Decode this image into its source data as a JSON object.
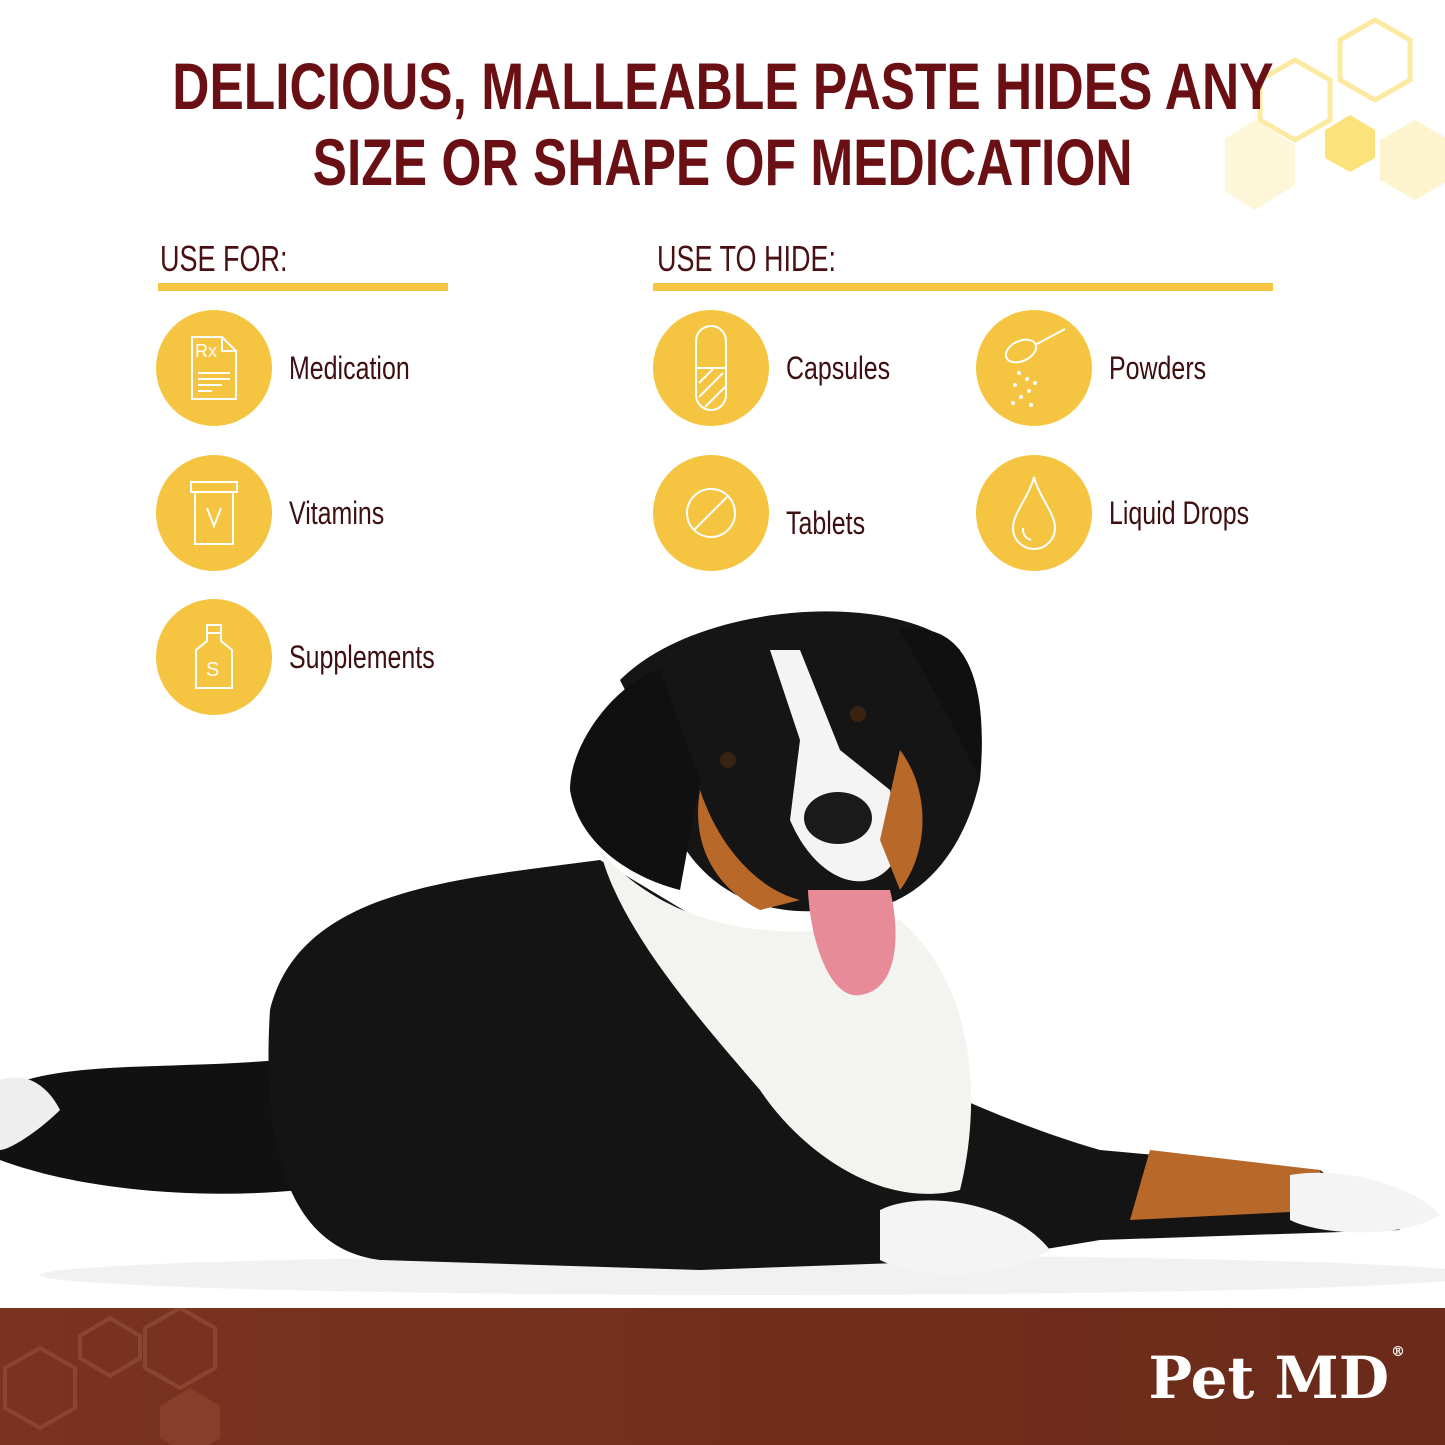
{
  "headline": {
    "line1": "DELICIOUS, MALLEABLE PASTE HIDES ANY",
    "line2": "SIZE OR SHAPE OF MEDICATION"
  },
  "use_for": {
    "heading": "USE FOR:",
    "items": [
      {
        "label": "Medication",
        "icon": "prescription-document-icon"
      },
      {
        "label": "Vitamins",
        "icon": "vitamin-jar-icon"
      },
      {
        "label": "Supplements",
        "icon": "supplement-bottle-icon"
      }
    ]
  },
  "use_to_hide": {
    "heading": "USE TO HIDE:",
    "items": [
      {
        "label": "Capsules",
        "icon": "capsule-icon"
      },
      {
        "label": "Powders",
        "icon": "powder-spoon-icon"
      },
      {
        "label": "Tablets",
        "icon": "tablet-icon"
      },
      {
        "label": "Liquid Drops",
        "icon": "droplet-icon"
      }
    ]
  },
  "brand": {
    "name": "Pet MD",
    "mark": "®"
  },
  "colors": {
    "title": "#6a1014",
    "accent": "#f5c542",
    "footer": "#6b2a1a"
  }
}
